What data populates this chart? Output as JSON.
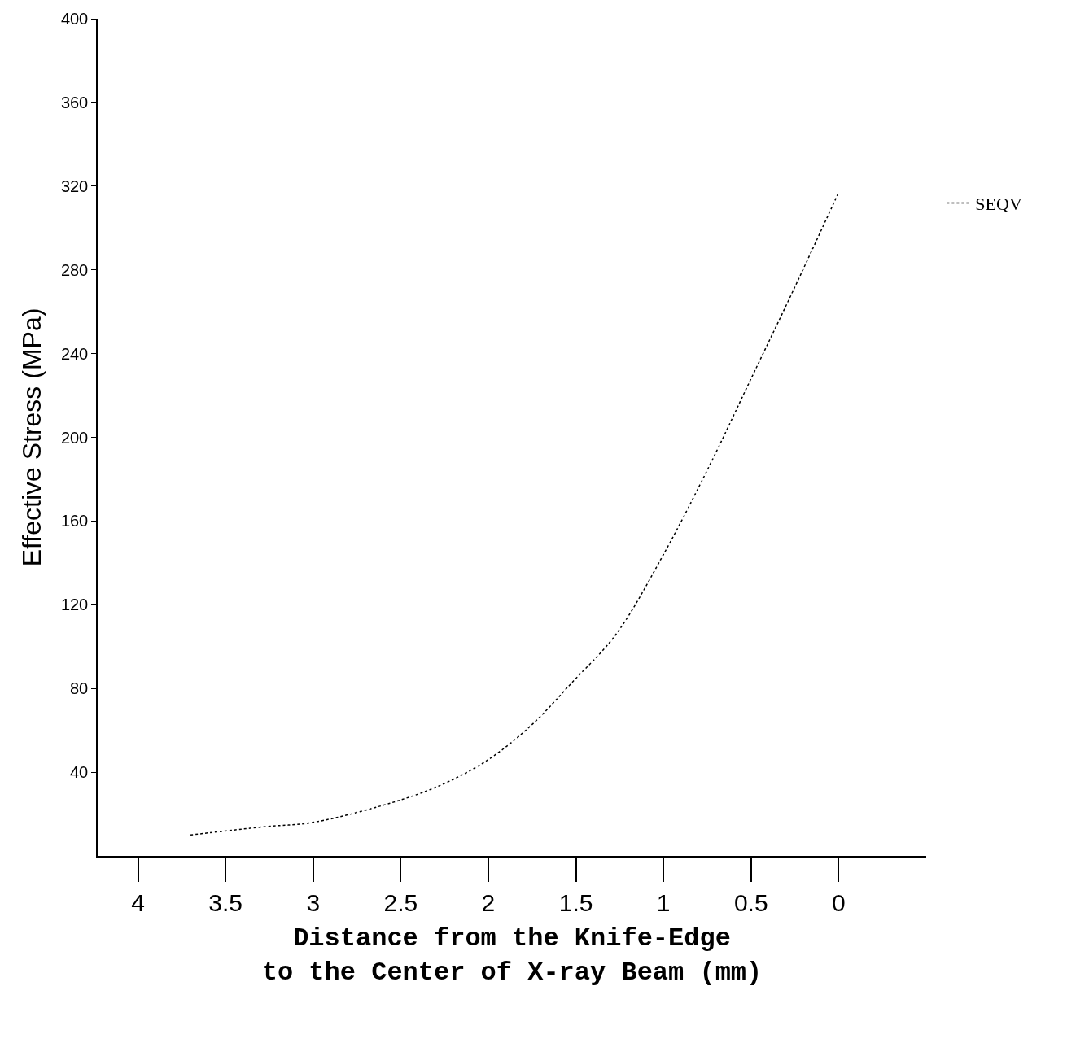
{
  "chart_data": {
    "type": "line",
    "xlabel": "Distance from the Knife-Edge\nto the Center of X-ray Beam (mm)",
    "ylabel": "Effective Stress (MPa)",
    "x": [
      3.7,
      3.27,
      3.0,
      2.49,
      2.24,
      2.0,
      1.76,
      1.52,
      1.27,
      1.0,
      0.74,
      0.5,
      0.26,
      0.0
    ],
    "series": [
      {
        "name": "SEQV",
        "color": "#000000",
        "values": [
          10,
          14,
          16,
          27,
          35,
          46,
          62,
          83,
          106,
          144,
          186,
          228,
          270,
          317
        ]
      }
    ],
    "xlim": [
      4.23,
      -0.5
    ],
    "xticks": [
      4,
      3.5,
      3,
      2.5,
      2,
      1.5,
      1,
      0.5,
      0
    ],
    "ylim": [
      0,
      400
    ],
    "yticks": [
      40,
      80,
      120,
      160,
      200,
      240,
      280,
      320,
      360,
      400
    ],
    "legend": "top right",
    "marker": "none",
    "line_style": "dotted"
  }
}
